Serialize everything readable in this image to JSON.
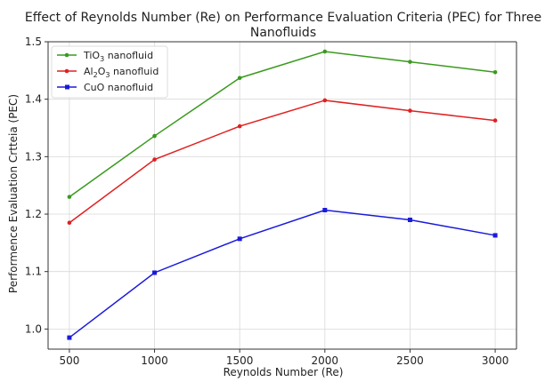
{
  "chart_data": {
    "type": "line",
    "title": "Effect of Reynolds Number (Re) on Performance Evaluation Criteria (PEC) for Three Nanofluids",
    "title_lines": [
      "Effect of Reynolds Number (Re) on Performance Evaluation Criteria (PEC) for Three",
      "Nanofluids"
    ],
    "xlabel": "Reynolds Number (Re)",
    "ylabel": "Performence Evaluation Crtteia (PEC)",
    "x": [
      500,
      1000,
      1500,
      2000,
      2500,
      3000
    ],
    "x_tick_labels": [
      "500",
      "1000",
      "1500",
      "2000",
      "2500",
      "3000"
    ],
    "y_tick_labels": [
      "1.0",
      "1.1",
      "1.2",
      "1.3",
      "1.4",
      "1.5"
    ],
    "y_ticks": [
      1.0,
      1.1,
      1.2,
      1.3,
      1.4,
      1.5
    ],
    "xlim": [
      375,
      3125
    ],
    "ylim": [
      0.965,
      1.5
    ],
    "grid": true,
    "legend_position": "top-left",
    "series": [
      {
        "name": "TiO₃ nanofluid",
        "legend_base": "TiO",
        "legend_sub": "3",
        "legend_rest": " nanofluid",
        "color": "#3a9a1e",
        "marker": "circle",
        "values": [
          1.23,
          1.336,
          1.437,
          1.483,
          1.465,
          1.447
        ]
      },
      {
        "name": "Al₂O₃ nanofluid",
        "legend_base": "Al",
        "legend_sub": "2",
        "legend_mid": "O",
        "legend_sub2": "3",
        "legend_rest": " nanofluid",
        "color": "#e02020",
        "marker": "circle",
        "values": [
          1.185,
          1.295,
          1.353,
          1.398,
          1.38,
          1.363
        ]
      },
      {
        "name": "CuO nanofluid",
        "legend_base": "CuO nanofluid",
        "color": "#1a1adb",
        "marker": "square",
        "values": [
          0.985,
          1.098,
          1.157,
          1.207,
          1.19,
          1.163
        ]
      }
    ]
  }
}
